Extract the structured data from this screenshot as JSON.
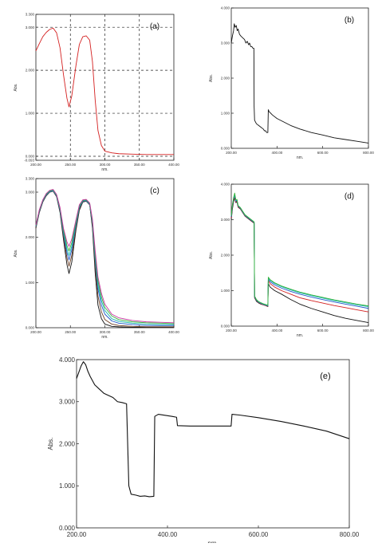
{
  "figure": {
    "panels": [
      {
        "id": "a",
        "label": "(a)"
      },
      {
        "id": "b",
        "label": "(b)"
      },
      {
        "id": "c",
        "label": "(c)"
      },
      {
        "id": "d",
        "label": "(d)"
      },
      {
        "id": "e",
        "label": "(e)"
      }
    ]
  },
  "chart_data": [
    {
      "panel": "a",
      "type": "line",
      "xlabel": "nm.",
      "ylabel": "Abs.",
      "xlim": [
        200,
        400
      ],
      "ylim": [
        -0.093,
        3.3
      ],
      "grid": "dashed",
      "x_ticks": [
        "200.00",
        "250.00",
        "300.00",
        "350.00",
        "400.00"
      ],
      "y_ticks": [
        {
          "value": -0.093,
          "label": "-0.093"
        },
        {
          "value": 0.0,
          "label": "0.000"
        },
        {
          "value": 1.0,
          "label": "1.000"
        },
        {
          "value": 2.0,
          "label": "2.000"
        },
        {
          "value": 3.0,
          "label": "3.000"
        },
        {
          "value": 3.3,
          "label": "3.300"
        }
      ],
      "series": [
        {
          "color": "#d42020",
          "x": [
            200,
            205,
            210,
            215,
            220,
            225,
            230,
            235,
            240,
            245,
            248,
            252,
            258,
            263,
            268,
            273,
            278,
            282,
            286,
            290,
            295,
            300,
            310,
            320,
            340,
            360,
            380,
            400
          ],
          "y": [
            2.45,
            2.62,
            2.78,
            2.88,
            2.95,
            2.98,
            2.87,
            2.52,
            1.9,
            1.35,
            1.15,
            1.4,
            2.1,
            2.6,
            2.78,
            2.8,
            2.7,
            2.2,
            1.3,
            0.6,
            0.25,
            0.12,
            0.08,
            0.06,
            0.05,
            0.04,
            0.04,
            0.04
          ]
        }
      ]
    },
    {
      "panel": "b",
      "type": "line",
      "xlabel": "nm.",
      "ylabel": "Abs.",
      "xlim": [
        200,
        800
      ],
      "ylim": [
        0,
        4
      ],
      "x_ticks": [
        "200.00",
        "400.00",
        "600.00",
        "800.00"
      ],
      "y_ticks": [
        {
          "value": 0,
          "label": "0.000"
        },
        {
          "value": 1,
          "label": "1.000"
        },
        {
          "value": 2,
          "label": "2.000"
        },
        {
          "value": 3,
          "label": "3.000"
        },
        {
          "value": 4,
          "label": "4.000"
        }
      ],
      "series": [
        {
          "color": "#111111",
          "x": [
            200,
            205,
            210,
            213,
            217,
            222,
            226,
            230,
            236,
            242,
            250,
            258,
            264,
            270,
            276,
            280,
            285,
            290,
            295,
            299,
            300,
            302,
            310,
            320,
            330,
            340,
            345,
            350,
            355,
            360,
            362,
            365,
            380,
            400,
            430,
            460,
            500,
            550,
            600,
            650,
            700,
            750,
            800
          ],
          "y": [
            3.0,
            3.2,
            3.35,
            3.55,
            3.45,
            3.5,
            3.35,
            3.4,
            3.25,
            3.2,
            3.15,
            3.1,
            3.0,
            3.05,
            2.95,
            3.0,
            2.9,
            2.9,
            2.85,
            2.85,
            1.2,
            0.8,
            0.7,
            0.65,
            0.6,
            0.55,
            0.5,
            0.5,
            0.45,
            0.45,
            1.1,
            1.05,
            0.95,
            0.85,
            0.75,
            0.65,
            0.55,
            0.45,
            0.38,
            0.3,
            0.25,
            0.2,
            0.15
          ]
        }
      ]
    },
    {
      "panel": "c",
      "type": "line",
      "xlabel": "nm.",
      "ylabel": "Abs.",
      "xlim": [
        200,
        400
      ],
      "ylim": [
        0,
        3.3
      ],
      "x_ticks": [
        "200.00",
        "250.00",
        "300.00",
        "350.00",
        "400.00"
      ],
      "y_ticks": [
        {
          "value": 0,
          "label": "0.000"
        },
        {
          "value": 1,
          "label": "1.000"
        },
        {
          "value": 2,
          "label": "2.000"
        },
        {
          "value": 3,
          "label": "3.000"
        },
        {
          "value": 3.3,
          "label": "3.300"
        }
      ],
      "x": [
        200,
        205,
        210,
        215,
        220,
        225,
        230,
        235,
        240,
        245,
        248,
        252,
        258,
        263,
        268,
        273,
        278,
        282,
        286,
        290,
        295,
        300,
        310,
        320,
        340,
        360,
        380,
        400
      ],
      "series": [
        {
          "color": "#111111",
          "y": [
            2.2,
            2.55,
            2.78,
            2.92,
            3.0,
            3.02,
            2.9,
            2.55,
            1.95,
            1.4,
            1.2,
            1.45,
            2.15,
            2.6,
            2.78,
            2.8,
            2.72,
            2.2,
            1.2,
            0.5,
            0.2,
            0.08,
            0.03,
            0.02,
            0.01,
            0.01,
            0.01,
            0.01
          ]
        },
        {
          "color": "#6d3f24",
          "y": [
            2.22,
            2.57,
            2.79,
            2.93,
            3.0,
            3.02,
            2.91,
            2.58,
            2.02,
            1.55,
            1.36,
            1.6,
            2.2,
            2.63,
            2.79,
            2.8,
            2.72,
            2.25,
            1.35,
            0.7,
            0.35,
            0.18,
            0.08,
            0.05,
            0.03,
            0.02,
            0.02,
            0.02
          ]
        },
        {
          "color": "#1f57c9",
          "y": [
            2.24,
            2.58,
            2.8,
            2.94,
            3.01,
            3.03,
            2.92,
            2.6,
            2.08,
            1.66,
            1.5,
            1.72,
            2.26,
            2.66,
            2.8,
            2.81,
            2.73,
            2.3,
            1.48,
            0.86,
            0.5,
            0.3,
            0.15,
            0.1,
            0.07,
            0.05,
            0.05,
            0.05
          ]
        },
        {
          "color": "#17b7b0",
          "y": [
            2.25,
            2.59,
            2.81,
            2.95,
            3.02,
            3.04,
            2.93,
            2.62,
            2.12,
            1.74,
            1.6,
            1.8,
            2.3,
            2.68,
            2.81,
            2.82,
            2.74,
            2.33,
            1.55,
            0.95,
            0.6,
            0.38,
            0.2,
            0.14,
            0.1,
            0.08,
            0.07,
            0.07
          ]
        },
        {
          "color": "#37b23a",
          "y": [
            2.26,
            2.6,
            2.82,
            2.96,
            3.03,
            3.05,
            2.94,
            2.64,
            2.16,
            1.82,
            1.7,
            1.88,
            2.34,
            2.7,
            2.82,
            2.83,
            2.75,
            2.36,
            1.62,
            1.04,
            0.68,
            0.45,
            0.26,
            0.18,
            0.13,
            0.11,
            0.1,
            0.09
          ]
        },
        {
          "color": "#c7339f",
          "y": [
            2.27,
            2.61,
            2.83,
            2.97,
            3.04,
            3.06,
            2.95,
            2.66,
            2.2,
            1.9,
            1.8,
            1.96,
            2.38,
            2.72,
            2.83,
            2.84,
            2.76,
            2.4,
            1.7,
            1.12,
            0.76,
            0.52,
            0.3,
            0.22,
            0.16,
            0.13,
            0.12,
            0.11
          ]
        }
      ]
    },
    {
      "panel": "d",
      "type": "line",
      "xlabel": "nm.",
      "ylabel": "Abs.",
      "xlim": [
        200,
        800
      ],
      "ylim": [
        0,
        4
      ],
      "x_ticks": [
        "200.00",
        "400.00",
        "600.00",
        "800.00"
      ],
      "y_ticks": [
        {
          "value": 0,
          "label": "0.000"
        },
        {
          "value": 1,
          "label": "1.000"
        },
        {
          "value": 2,
          "label": "2.000"
        },
        {
          "value": 3,
          "label": "3.000"
        },
        {
          "value": 4,
          "label": "4.000"
        }
      ],
      "x": [
        200,
        205,
        210,
        215,
        220,
        225,
        230,
        240,
        250,
        260,
        270,
        280,
        290,
        300,
        302,
        310,
        320,
        330,
        340,
        350,
        360,
        362,
        370,
        390,
        420,
        460,
        500,
        550,
        600,
        650,
        700,
        750,
        800
      ],
      "series": [
        {
          "color": "#111111",
          "y": [
            3.0,
            3.3,
            3.5,
            3.62,
            3.48,
            3.5,
            3.35,
            3.3,
            3.2,
            3.1,
            3.05,
            3.0,
            2.95,
            2.9,
            0.8,
            0.7,
            0.65,
            0.62,
            0.6,
            0.58,
            0.55,
            1.2,
            1.1,
            1.0,
            0.9,
            0.75,
            0.62,
            0.5,
            0.4,
            0.3,
            0.22,
            0.16,
            0.1
          ]
        },
        {
          "color": "#d32020",
          "y": [
            3.05,
            3.35,
            3.55,
            3.65,
            3.5,
            3.52,
            3.36,
            3.31,
            3.21,
            3.11,
            3.06,
            3.01,
            2.96,
            2.91,
            0.82,
            0.72,
            0.66,
            0.63,
            0.6,
            0.58,
            0.56,
            1.28,
            1.2,
            1.1,
            1.0,
            0.9,
            0.8,
            0.72,
            0.65,
            0.58,
            0.52,
            0.46,
            0.4
          ]
        },
        {
          "color": "#1f57c9",
          "y": [
            3.08,
            3.38,
            3.58,
            3.68,
            3.52,
            3.54,
            3.38,
            3.32,
            3.22,
            3.12,
            3.07,
            3.02,
            2.97,
            2.92,
            0.83,
            0.73,
            0.67,
            0.64,
            0.61,
            0.59,
            0.57,
            1.32,
            1.25,
            1.16,
            1.07,
            0.98,
            0.9,
            0.82,
            0.75,
            0.68,
            0.62,
            0.56,
            0.5
          ]
        },
        {
          "color": "#17b7b0",
          "y": [
            3.1,
            3.4,
            3.6,
            3.7,
            3.54,
            3.55,
            3.39,
            3.33,
            3.23,
            3.13,
            3.08,
            3.03,
            2.98,
            2.93,
            0.84,
            0.74,
            0.68,
            0.65,
            0.62,
            0.6,
            0.58,
            1.36,
            1.29,
            1.2,
            1.11,
            1.02,
            0.94,
            0.86,
            0.79,
            0.72,
            0.66,
            0.6,
            0.55
          ]
        },
        {
          "color": "#37b23a",
          "y": [
            3.12,
            3.42,
            3.62,
            3.75,
            3.56,
            3.57,
            3.4,
            3.34,
            3.24,
            3.14,
            3.09,
            3.04,
            2.99,
            2.94,
            0.85,
            0.75,
            0.69,
            0.66,
            0.63,
            0.61,
            0.59,
            1.38,
            1.31,
            1.22,
            1.13,
            1.04,
            0.96,
            0.88,
            0.81,
            0.74,
            0.68,
            0.62,
            0.57
          ]
        }
      ]
    },
    {
      "panel": "e",
      "type": "line",
      "xlabel": "nm.",
      "ylabel": "Abs.",
      "xlim": [
        200,
        800
      ],
      "ylim": [
        0,
        4
      ],
      "x_ticks": [
        "200.00",
        "400.00",
        "600.00",
        "800.00"
      ],
      "y_ticks": [
        {
          "value": 0,
          "label": "0.000"
        },
        {
          "value": 1,
          "label": "1.000"
        },
        {
          "value": 2,
          "label": "2.000"
        },
        {
          "value": 3,
          "label": "3.000"
        },
        {
          "value": 4,
          "label": "4.000"
        }
      ],
      "series": [
        {
          "color": "#111111",
          "x": [
            200,
            205,
            210,
            215,
            220,
            225,
            230,
            235,
            240,
            250,
            260,
            270,
            280,
            290,
            300,
            310,
            315,
            320,
            330,
            340,
            350,
            360,
            370,
            372,
            380,
            410,
            420,
            422,
            450,
            500,
            520,
            540,
            542,
            560,
            600,
            650,
            700,
            750,
            800
          ],
          "y": [
            3.55,
            3.7,
            3.85,
            3.95,
            3.88,
            3.72,
            3.6,
            3.5,
            3.4,
            3.3,
            3.2,
            3.15,
            3.1,
            3.0,
            2.98,
            2.95,
            1.0,
            0.8,
            0.78,
            0.75,
            0.76,
            0.74,
            0.75,
            2.65,
            2.7,
            2.65,
            2.63,
            2.43,
            2.42,
            2.42,
            2.42,
            2.42,
            2.7,
            2.68,
            2.62,
            2.53,
            2.42,
            2.3,
            2.12
          ]
        }
      ]
    }
  ]
}
